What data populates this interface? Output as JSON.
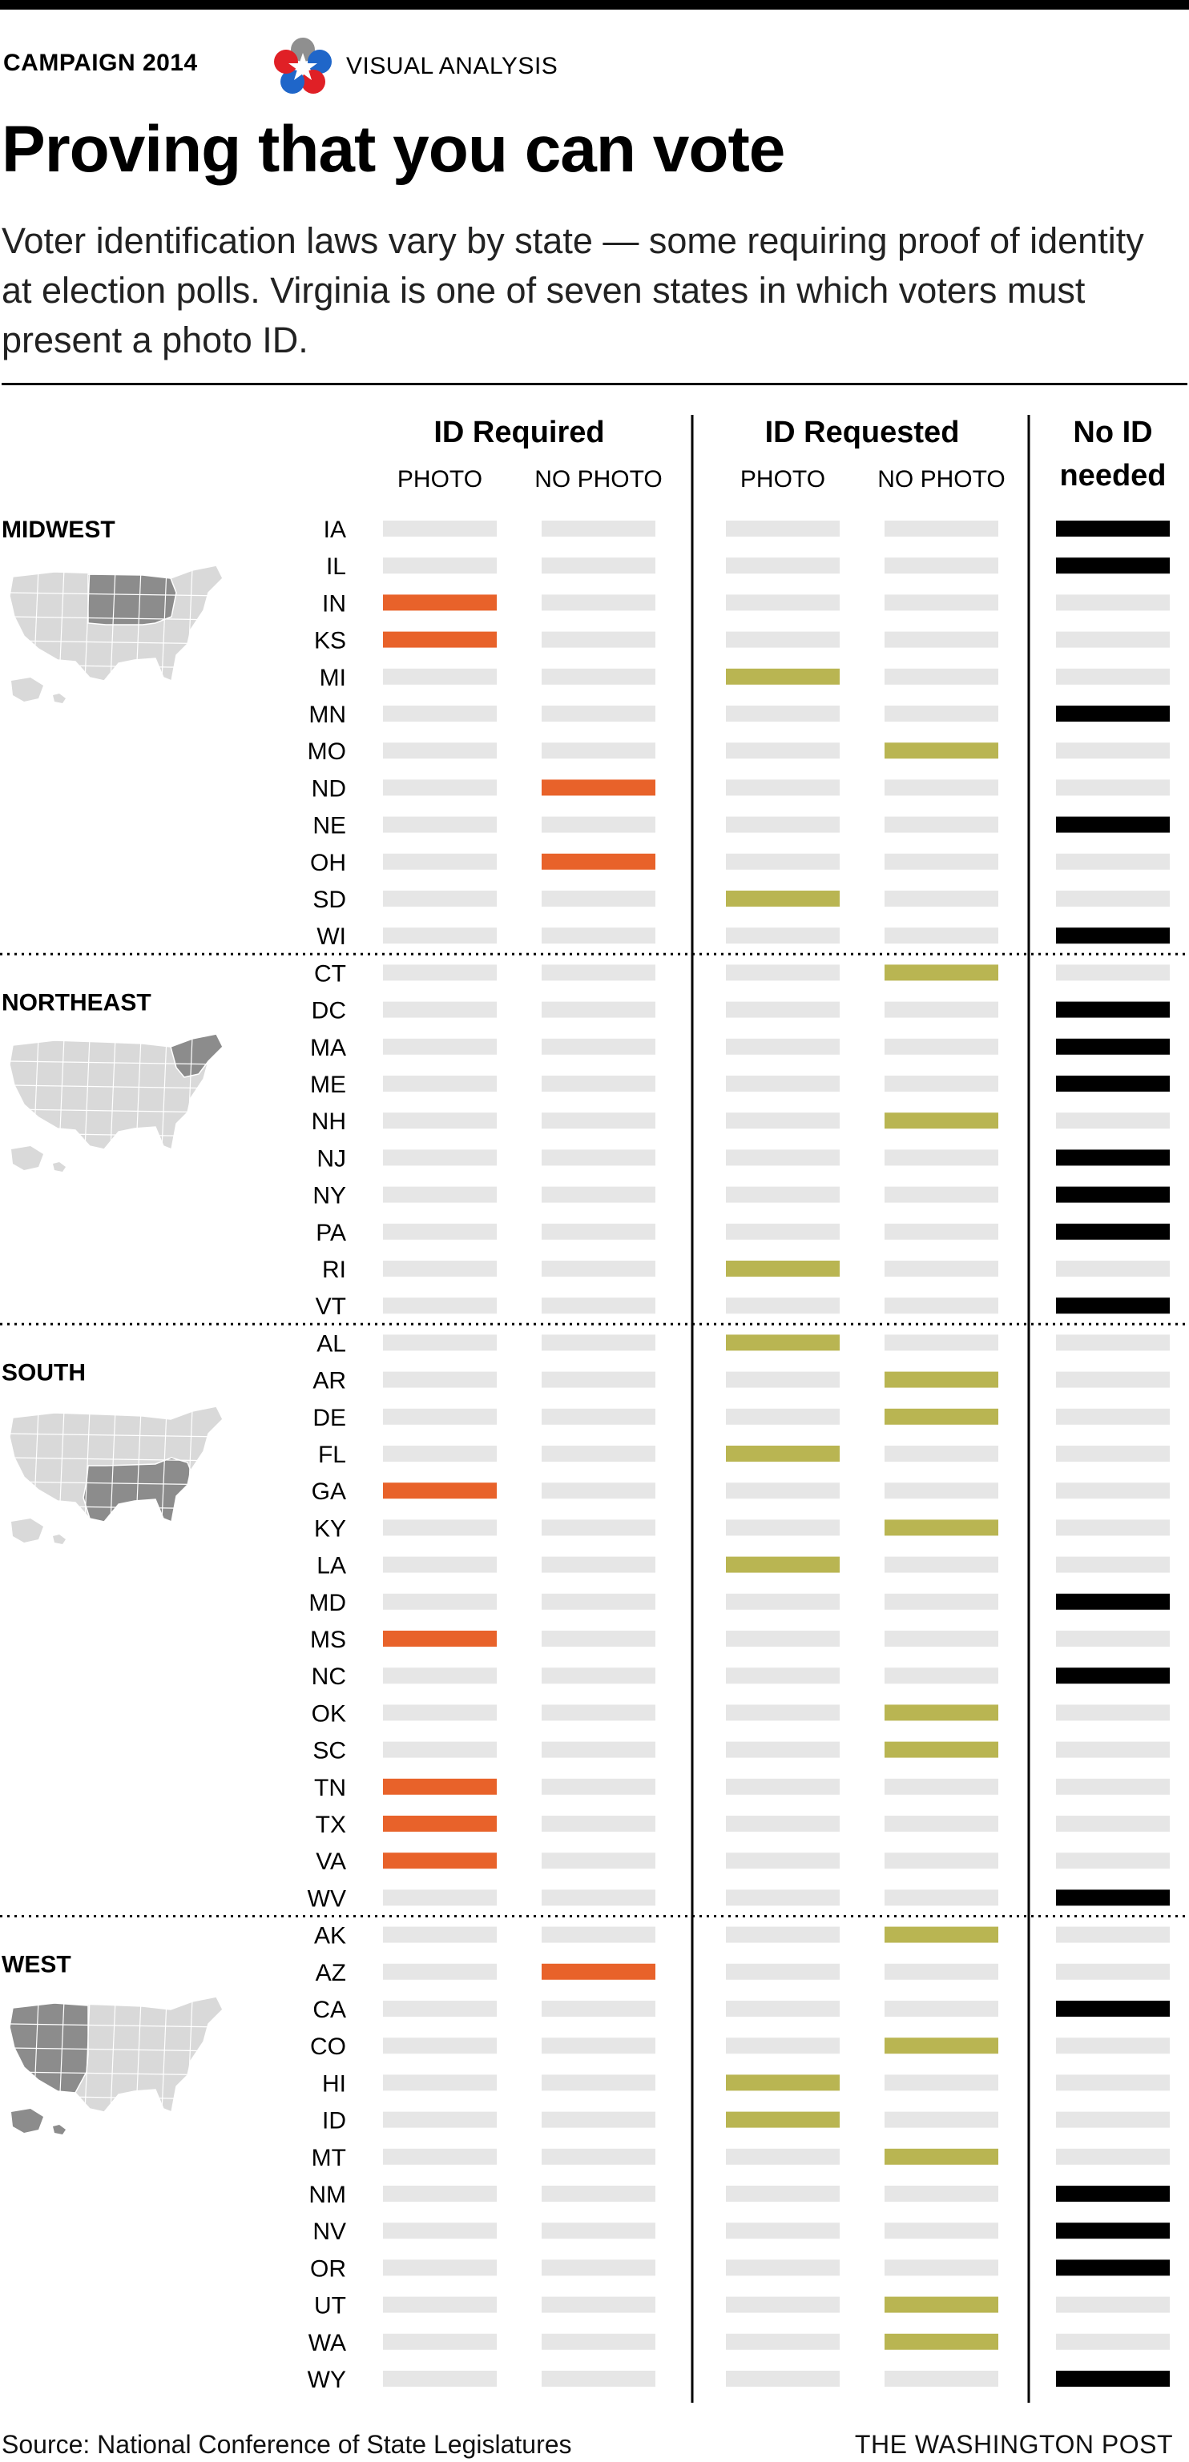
{
  "header": {
    "kicker": "CAMPAIGN 2014",
    "kicker_right": "VISUAL ANALYSIS",
    "title": "Proving that you can vote",
    "dek": "Voter identification laws vary by state — some requiring proof of identity at election polls. Virginia is one of seven states in which voters must present a photo ID."
  },
  "colors": {
    "required": "#e8622a",
    "requested": "#b9b552",
    "none": "#000000",
    "empty": "#e6e6e6",
    "map_highlight": "#8c8c8c",
    "map_base": "#d9d9d9"
  },
  "chart_data": {
    "type": "table",
    "groups": [
      {
        "label": "ID Required",
        "lines": [
          "ID Required"
        ],
        "columns": [
          "PHOTO",
          "NO PHOTO"
        ]
      },
      {
        "label": "ID Requested",
        "lines": [
          "ID Requested"
        ],
        "columns": [
          "PHOTO",
          "NO PHOTO"
        ]
      },
      {
        "label": "No ID needed",
        "lines": [
          "No ID",
          "needed"
        ],
        "columns": []
      }
    ],
    "regions": [
      {
        "name": "MIDWEST",
        "states": [
          {
            "state": "IA",
            "category": 4
          },
          {
            "state": "IL",
            "category": 4
          },
          {
            "state": "IN",
            "category": 0
          },
          {
            "state": "KS",
            "category": 0
          },
          {
            "state": "MI",
            "category": 2
          },
          {
            "state": "MN",
            "category": 4
          },
          {
            "state": "MO",
            "category": 3
          },
          {
            "state": "ND",
            "category": 1
          },
          {
            "state": "NE",
            "category": 4
          },
          {
            "state": "OH",
            "category": 1
          },
          {
            "state": "SD",
            "category": 2
          },
          {
            "state": "WI",
            "category": 4
          }
        ]
      },
      {
        "name": "NORTHEAST",
        "states": [
          {
            "state": "CT",
            "category": 3
          },
          {
            "state": "DC",
            "category": 4
          },
          {
            "state": "MA",
            "category": 4
          },
          {
            "state": "ME",
            "category": 4
          },
          {
            "state": "NH",
            "category": 3
          },
          {
            "state": "NJ",
            "category": 4
          },
          {
            "state": "NY",
            "category": 4
          },
          {
            "state": "PA",
            "category": 4
          },
          {
            "state": "RI",
            "category": 2
          },
          {
            "state": "VT",
            "category": 4
          }
        ]
      },
      {
        "name": "SOUTH",
        "states": [
          {
            "state": "AL",
            "category": 2
          },
          {
            "state": "AR",
            "category": 3
          },
          {
            "state": "DE",
            "category": 3
          },
          {
            "state": "FL",
            "category": 2
          },
          {
            "state": "GA",
            "category": 0
          },
          {
            "state": "KY",
            "category": 3
          },
          {
            "state": "LA",
            "category": 2
          },
          {
            "state": "MD",
            "category": 4
          },
          {
            "state": "MS",
            "category": 0
          },
          {
            "state": "NC",
            "category": 4
          },
          {
            "state": "OK",
            "category": 3
          },
          {
            "state": "SC",
            "category": 3
          },
          {
            "state": "TN",
            "category": 0
          },
          {
            "state": "TX",
            "category": 0
          },
          {
            "state": "VA",
            "category": 0
          },
          {
            "state": "WV",
            "category": 4
          }
        ]
      },
      {
        "name": "WEST",
        "states": [
          {
            "state": "AK",
            "category": 3
          },
          {
            "state": "AZ",
            "category": 1
          },
          {
            "state": "CA",
            "category": 4
          },
          {
            "state": "CO",
            "category": 3
          },
          {
            "state": "HI",
            "category": 2
          },
          {
            "state": "ID",
            "category": 2
          },
          {
            "state": "MT",
            "category": 3
          },
          {
            "state": "NM",
            "category": 4
          },
          {
            "state": "NV",
            "category": 4
          },
          {
            "state": "OR",
            "category": 4
          },
          {
            "state": "UT",
            "category": 3
          },
          {
            "state": "WA",
            "category": 3
          },
          {
            "state": "WY",
            "category": 4
          }
        ]
      }
    ]
  },
  "footer": {
    "source": "Source: National Conference of State Legislatures",
    "credit": "THE WASHINGTON POST"
  }
}
